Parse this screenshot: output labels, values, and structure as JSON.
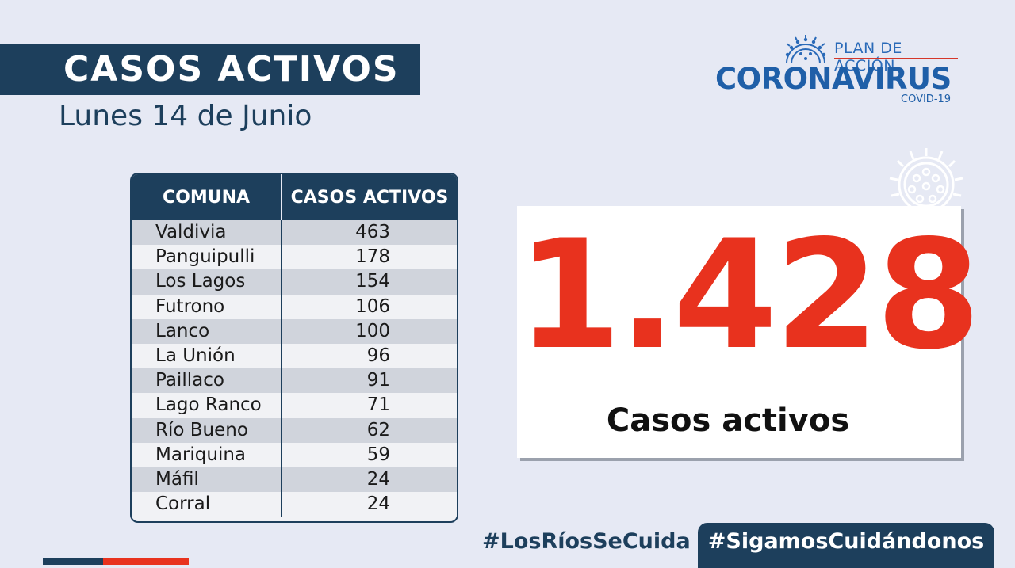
{
  "header": {
    "title": "CASOS ACTIVOS",
    "date": "Lunes 14 de Junio"
  },
  "logo": {
    "plan_label": "PLAN DE ACCIÓN",
    "main_label": "CORONAVIRUS",
    "sub_label": "COVID-19",
    "icon": "virus-icon"
  },
  "table": {
    "headers": [
      "COMUNA",
      "CASOS ACTIVOS"
    ],
    "rows": [
      {
        "comuna": "Valdivia",
        "casos": "463"
      },
      {
        "comuna": "Panguipulli",
        "casos": "178"
      },
      {
        "comuna": "Los Lagos",
        "casos": "154"
      },
      {
        "comuna": "Futrono",
        "casos": "106"
      },
      {
        "comuna": "Lanco",
        "casos": "100"
      },
      {
        "comuna": "La Unión",
        "casos": "96"
      },
      {
        "comuna": "Paillaco",
        "casos": "91"
      },
      {
        "comuna": "Lago Ranco",
        "casos": "71"
      },
      {
        "comuna": "Río Bueno",
        "casos": "62"
      },
      {
        "comuna": "Mariquina",
        "casos": "59"
      },
      {
        "comuna": "Máfil",
        "casos": "24"
      },
      {
        "comuna": "Corral",
        "casos": "24"
      }
    ]
  },
  "total": {
    "number": "1.428",
    "label": "Casos activos"
  },
  "footer": {
    "hashtag_left": "#LosRíosSeCuida",
    "hashtag_right": "#SigamosCuidándonos"
  },
  "colors": {
    "navy": "#1d3f5c",
    "accent_red": "#e8321e",
    "logo_blue": "#1f5fa8",
    "background": "#e6e9f4"
  }
}
